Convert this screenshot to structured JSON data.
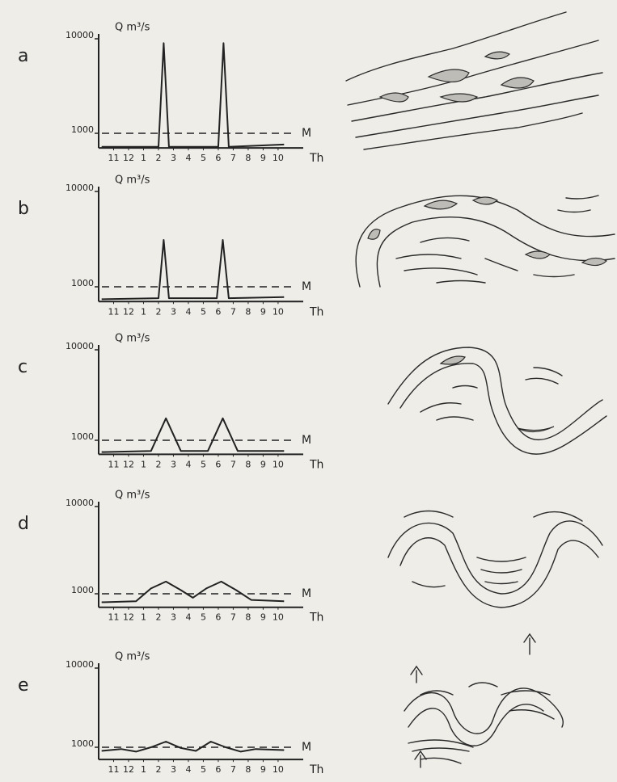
{
  "chart_data": [
    {
      "type": "line",
      "letter": "a",
      "y_label": "Q m³/s",
      "x_label": "Th",
      "log_scale": true,
      "ylim": [
        700,
        10000
      ],
      "yticks": [
        1000,
        10000
      ],
      "xlim": [
        -1,
        11.6
      ],
      "xticks": [
        {
          "value": 0,
          "label": "11"
        },
        {
          "value": 1,
          "label": "12"
        },
        {
          "value": 2,
          "label": "1"
        },
        {
          "value": 3,
          "label": "2"
        },
        {
          "value": 4,
          "label": "3"
        },
        {
          "value": 5,
          "label": "4"
        },
        {
          "value": 6,
          "label": "5"
        },
        {
          "value": 7,
          "label": "6"
        },
        {
          "value": 8,
          "label": "7"
        },
        {
          "value": 9,
          "label": "8"
        },
        {
          "value": 10,
          "label": "9"
        },
        {
          "value": 11,
          "label": "10"
        }
      ],
      "reference_line": {
        "value": 1000,
        "label": "M"
      },
      "x": [
        -0.8,
        3.0,
        3.35,
        3.7,
        7.0,
        7.35,
        7.7,
        11.4
      ],
      "values": [
        720,
        720,
        9000,
        720,
        720,
        9000,
        720,
        760
      ],
      "color": "#222222"
    },
    {
      "type": "line",
      "letter": "b",
      "y_label": "Q m³/s",
      "x_label": "Th",
      "log_scale": true,
      "ylim": [
        700,
        10000
      ],
      "yticks": [
        1000,
        10000
      ],
      "xlim": [
        -1,
        11.6
      ],
      "xticks": [
        {
          "value": 0,
          "label": "11"
        },
        {
          "value": 1,
          "label": "12"
        },
        {
          "value": 2,
          "label": "1"
        },
        {
          "value": 3,
          "label": "2"
        },
        {
          "value": 4,
          "label": "3"
        },
        {
          "value": 5,
          "label": "4"
        },
        {
          "value": 6,
          "label": "5"
        },
        {
          "value": 7,
          "label": "6"
        },
        {
          "value": 8,
          "label": "7"
        },
        {
          "value": 9,
          "label": "8"
        },
        {
          "value": 10,
          "label": "9"
        },
        {
          "value": 11,
          "label": "10"
        }
      ],
      "reference_line": {
        "value": 1000,
        "label": "M"
      },
      "x": [
        -0.8,
        3.0,
        3.35,
        3.7,
        6.9,
        7.3,
        7.7,
        11.4
      ],
      "values": [
        740,
        760,
        3100,
        760,
        760,
        3100,
        760,
        780
      ],
      "color": "#222222"
    },
    {
      "type": "line",
      "letter": "c",
      "y_label": "Q m³/s",
      "x_label": "Th",
      "log_scale": true,
      "ylim": [
        700,
        10000
      ],
      "yticks": [
        1000,
        10000
      ],
      "xlim": [
        -1,
        11.6
      ],
      "xticks": [
        {
          "value": 0,
          "label": "11"
        },
        {
          "value": 1,
          "label": "12"
        },
        {
          "value": 2,
          "label": "1"
        },
        {
          "value": 3,
          "label": "2"
        },
        {
          "value": 4,
          "label": "3"
        },
        {
          "value": 5,
          "label": "4"
        },
        {
          "value": 6,
          "label": "5"
        },
        {
          "value": 7,
          "label": "6"
        },
        {
          "value": 8,
          "label": "7"
        },
        {
          "value": 9,
          "label": "8"
        },
        {
          "value": 10,
          "label": "9"
        },
        {
          "value": 11,
          "label": "10"
        }
      ],
      "reference_line": {
        "value": 1000,
        "label": "M"
      },
      "x": [
        -0.8,
        2.5,
        3.5,
        4.5,
        6.3,
        7.3,
        8.3,
        11.4
      ],
      "values": [
        740,
        760,
        1750,
        760,
        760,
        1750,
        760,
        760
      ],
      "color": "#222222"
    },
    {
      "type": "line",
      "letter": "d",
      "y_label": "Q m³/s",
      "x_label": "Th",
      "log_scale": true,
      "ylim": [
        700,
        10000
      ],
      "yticks": [
        1000,
        10000
      ],
      "xlim": [
        -1,
        11.6
      ],
      "xticks": [
        {
          "value": 0,
          "label": "11"
        },
        {
          "value": 1,
          "label": "12"
        },
        {
          "value": 2,
          "label": "1"
        },
        {
          "value": 3,
          "label": "2"
        },
        {
          "value": 4,
          "label": "3"
        },
        {
          "value": 5,
          "label": "4"
        },
        {
          "value": 6,
          "label": "5"
        },
        {
          "value": 7,
          "label": "6"
        },
        {
          "value": 8,
          "label": "7"
        },
        {
          "value": 9,
          "label": "8"
        },
        {
          "value": 10,
          "label": "9"
        },
        {
          "value": 11,
          "label": "10"
        }
      ],
      "reference_line": {
        "value": 1000,
        "label": "M"
      },
      "x": [
        -0.8,
        1.5,
        2.5,
        3.5,
        4.5,
        5.3,
        6.2,
        7.2,
        8.2,
        9.2,
        11.4
      ],
      "values": [
        800,
        820,
        1150,
        1380,
        1100,
        900,
        1150,
        1380,
        1100,
        850,
        820
      ],
      "color": "#222222"
    },
    {
      "type": "line",
      "letter": "e",
      "y_label": "Q m³/s",
      "x_label": "Th",
      "log_scale": true,
      "ylim": [
        700,
        10000
      ],
      "yticks": [
        1000,
        10000
      ],
      "xlim": [
        -1,
        11.6
      ],
      "xticks": [
        {
          "value": 0,
          "label": "11"
        },
        {
          "value": 1,
          "label": "12"
        },
        {
          "value": 2,
          "label": "1"
        },
        {
          "value": 3,
          "label": "2"
        },
        {
          "value": 4,
          "label": "3"
        },
        {
          "value": 5,
          "label": "4"
        },
        {
          "value": 6,
          "label": "5"
        },
        {
          "value": 7,
          "label": "6"
        },
        {
          "value": 8,
          "label": "7"
        },
        {
          "value": 9,
          "label": "8"
        },
        {
          "value": 10,
          "label": "9"
        },
        {
          "value": 11,
          "label": "10"
        }
      ],
      "reference_line": {
        "value": 1000,
        "label": "M"
      },
      "x": [
        -0.8,
        0.5,
        1.5,
        2.5,
        3.5,
        4.5,
        5.5,
        6.5,
        7.5,
        8.5,
        9.5,
        11.4
      ],
      "values": [
        900,
        950,
        880,
        1000,
        1180,
        980,
        900,
        1180,
        1000,
        880,
        950,
        920
      ],
      "color": "#222222"
    }
  ]
}
